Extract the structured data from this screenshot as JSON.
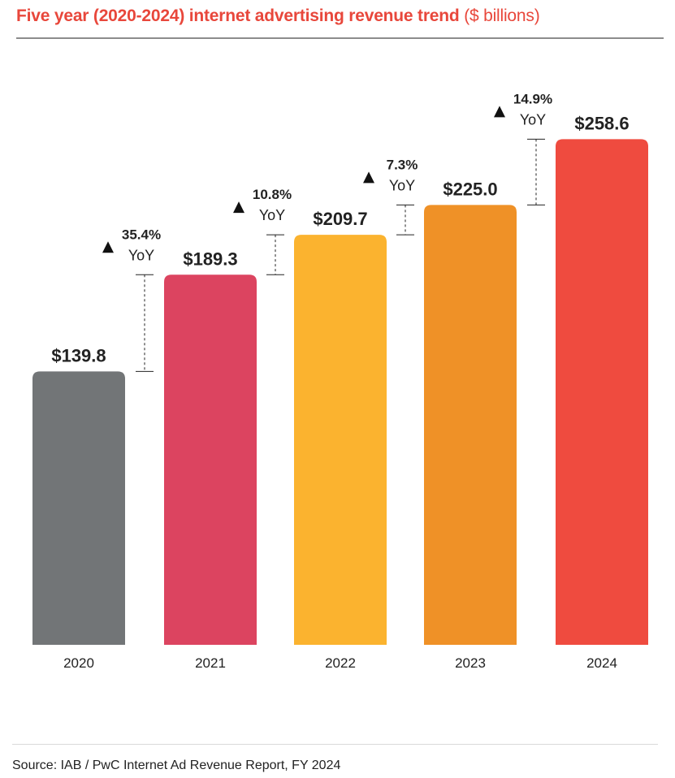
{
  "title": {
    "main": "Five year (2020-2024) internet advertising revenue trend",
    "unit": "($ billions)"
  },
  "colors": {
    "accent": "#e8473b",
    "rule": "#8c8c8c",
    "text": "#222222"
  },
  "chart_data": {
    "type": "bar",
    "categories": [
      "2020",
      "2021",
      "2022",
      "2023",
      "2024"
    ],
    "values": [
      139.8,
      189.3,
      209.7,
      225.0,
      258.6
    ],
    "value_labels": [
      "$139.8",
      "$189.3",
      "$209.7",
      "$225.0",
      "$258.6"
    ],
    "bar_colors": [
      "#727577",
      "#dc4460",
      "#fbb32f",
      "#ef9127",
      "#ef4b3f"
    ],
    "yoy": [
      {
        "pct": "35.4%",
        "suffix": "YoY"
      },
      {
        "pct": "10.8%",
        "suffix": "YoY"
      },
      {
        "pct": "7.3%",
        "suffix": "YoY"
      },
      {
        "pct": "14.9%",
        "suffix": "YoY"
      }
    ],
    "ylim": [
      0,
      275
    ],
    "grid": false,
    "legend": "none"
  },
  "source": "Source:  IAB / PwC Internet Ad Revenue Report, FY 2024"
}
